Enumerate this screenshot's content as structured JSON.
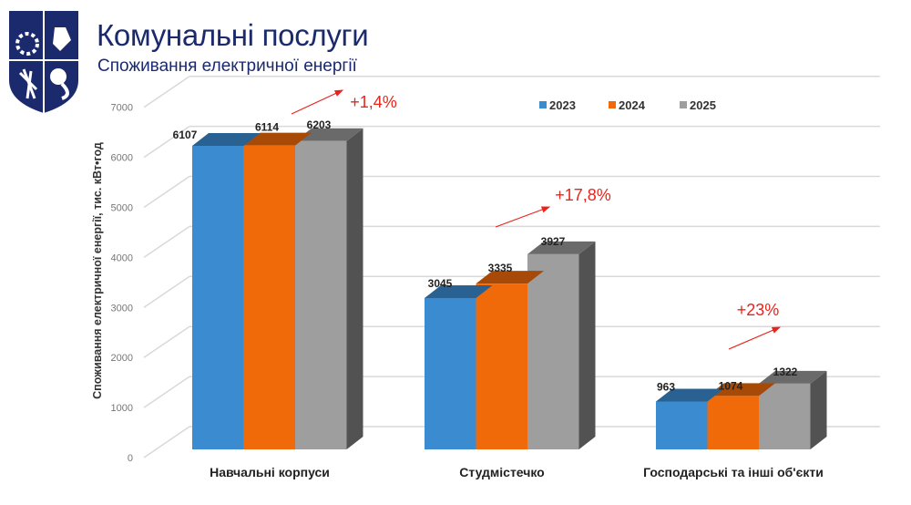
{
  "header": {
    "title": "Комунальні послуги",
    "subtitle": "Споживання електричної енергії",
    "logo": "university-shield-logo"
  },
  "chart_data": {
    "type": "bar",
    "style": "3d-clustered",
    "categories": [
      "Навчальні корпуси",
      "Студмістечко",
      "Господарські та інші об'єкти"
    ],
    "series": [
      {
        "name": "2023",
        "color": "#3b8bd0",
        "values": [
          6107,
          3045,
          963
        ]
      },
      {
        "name": "2024",
        "color": "#f06a0a",
        "values": [
          6114,
          3335,
          1074
        ]
      },
      {
        "name": "2025",
        "color": "#9e9e9e",
        "values": [
          6203,
          3927,
          1322
        ]
      }
    ],
    "ylabel": "Споживання електричної енергії, тис. кВт•год",
    "xlabel": "",
    "ylim": [
      0,
      7000
    ],
    "yticks": [
      0,
      1000,
      2000,
      3000,
      4000,
      5000,
      6000,
      7000
    ],
    "grid": true,
    "legend_position": "top-right",
    "annotations": [
      {
        "category": "Навчальні корпуси",
        "text": "+1,4%"
      },
      {
        "category": "Студмістечко",
        "text": "+17,8%"
      },
      {
        "category": "Господарські та інші об'єкти",
        "text": "+23%"
      }
    ],
    "annotation_color": "#e8241c"
  }
}
